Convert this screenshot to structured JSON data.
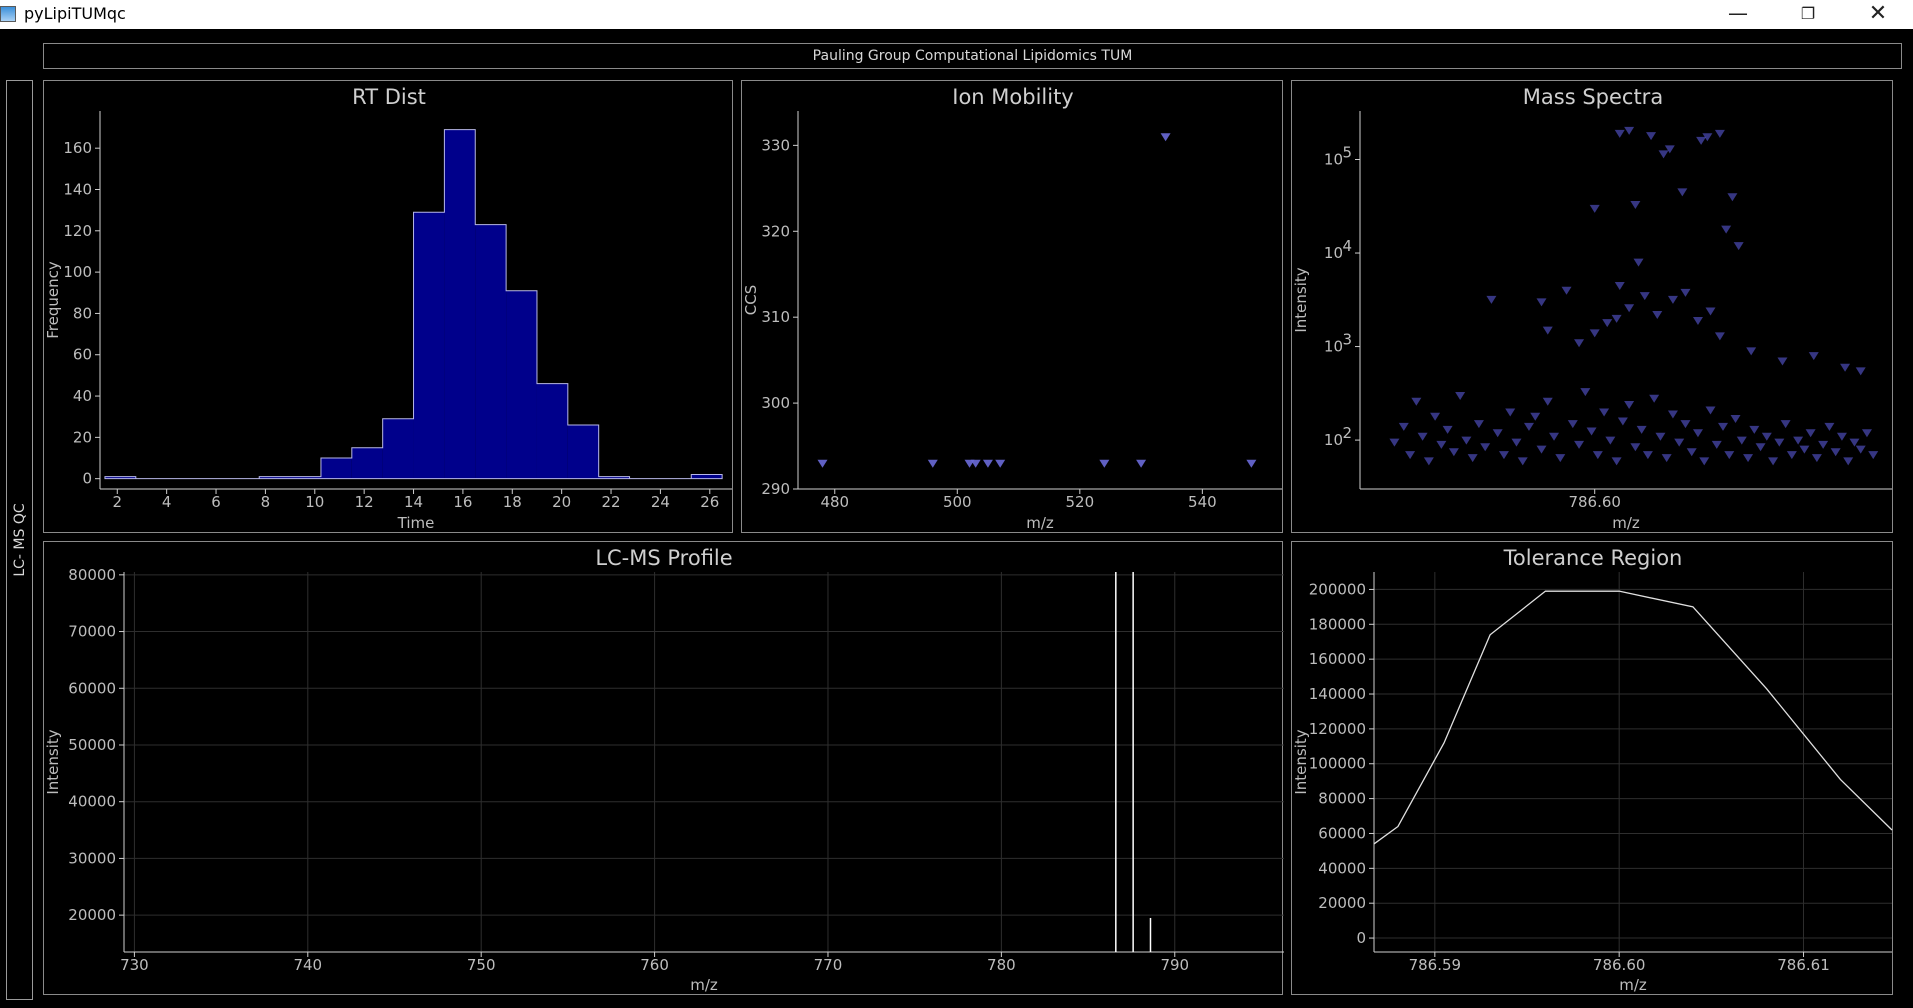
{
  "window": {
    "title": "pyLipiTUMqc",
    "controls": {
      "minimize": "—",
      "maximize": "❐",
      "close": "✕"
    }
  },
  "banner": "Pauling Group Computational Lipidomics TUM",
  "side_tab": "LC- MS QC",
  "colors": {
    "background": "#000000",
    "histogram_fill": "#00008b",
    "marker": "#5a5ad8",
    "line": "#ffffff",
    "grid": "#2e2e2e"
  },
  "chart_data": [
    {
      "id": "rt",
      "type": "bar",
      "title": "RT Dist",
      "xlabel": "Time",
      "ylabel": "Frequency",
      "xlim": [
        1.3,
        26.9
      ],
      "ylim": [
        -5,
        178
      ],
      "xticks": [
        2,
        4,
        6,
        8,
        10,
        12,
        14,
        16,
        18,
        20,
        22,
        24,
        26
      ],
      "yticks": [
        0,
        20,
        40,
        60,
        80,
        100,
        120,
        140,
        160
      ],
      "bin_edges": [
        1.5,
        2.75,
        4.0,
        5.25,
        6.5,
        7.75,
        9.0,
        10.25,
        11.5,
        12.75,
        14.0,
        15.25,
        16.5,
        17.75,
        19.0,
        20.25,
        21.5,
        22.75,
        24.0,
        25.25,
        26.5
      ],
      "values": [
        1,
        0,
        0,
        0,
        0,
        1,
        1,
        10,
        15,
        29,
        129,
        169,
        123,
        91,
        46,
        26,
        1,
        0,
        0,
        2
      ]
    },
    {
      "id": "ion",
      "type": "scatter",
      "title": "Ion Mobility",
      "xlabel": "m/z",
      "ylabel": "CCS",
      "xlim": [
        474,
        553
      ],
      "ylim": [
        290,
        334
      ],
      "xticks": [
        480,
        500,
        520,
        540
      ],
      "yticks": [
        290,
        300,
        310,
        320,
        330
      ],
      "points": [
        [
          478,
          293
        ],
        [
          496,
          293
        ],
        [
          502,
          293
        ],
        [
          503,
          293
        ],
        [
          505,
          293
        ],
        [
          507,
          293
        ],
        [
          524,
          293
        ],
        [
          530,
          293
        ],
        [
          548,
          293
        ],
        [
          534,
          331
        ]
      ]
    },
    {
      "id": "mass",
      "type": "scatter",
      "title": "Mass Spectra",
      "xlabel": "m/z",
      "ylabel": "Intensity",
      "yscale": "log",
      "xlim": [
        786.5925,
        786.6095
      ],
      "ylim": [
        30,
        330000
      ],
      "xticks": [
        786.6
      ],
      "xtick_labels": [
        "786.60"
      ],
      "yticks": [
        100,
        1000,
        10000,
        100000
      ],
      "ytick_base": "10",
      "ytick_exponents": [
        "2",
        "3",
        "4",
        "5"
      ],
      "points": [
        [
          786.5936,
          95
        ],
        [
          786.5939,
          140
        ],
        [
          786.5941,
          70
        ],
        [
          786.5943,
          260
        ],
        [
          786.5945,
          110
        ],
        [
          786.5947,
          60
        ],
        [
          786.5949,
          180
        ],
        [
          786.5951,
          90
        ],
        [
          786.5953,
          130
        ],
        [
          786.5955,
          75
        ],
        [
          786.5957,
          300
        ],
        [
          786.5959,
          100
        ],
        [
          786.5961,
          65
        ],
        [
          786.5963,
          150
        ],
        [
          786.5965,
          85
        ],
        [
          786.5967,
          3200
        ],
        [
          786.5969,
          120
        ],
        [
          786.5971,
          70
        ],
        [
          786.5973,
          200
        ],
        [
          786.5975,
          95
        ],
        [
          786.5977,
          60
        ],
        [
          786.5979,
          140
        ],
        [
          786.5981,
          180
        ],
        [
          786.5983,
          80
        ],
        [
          786.5985,
          260
        ],
        [
          786.5987,
          110
        ],
        [
          786.5989,
          65
        ],
        [
          786.5991,
          4000
        ],
        [
          786.5993,
          150
        ],
        [
          786.5995,
          90
        ],
        [
          786.5997,
          330
        ],
        [
          786.5999,
          125
        ],
        [
          786.6001,
          70
        ],
        [
          786.6003,
          200
        ],
        [
          786.6005,
          100
        ],
        [
          786.6007,
          60
        ],
        [
          786.6009,
          160
        ],
        [
          786.6011,
          240
        ],
        [
          786.6013,
          85
        ],
        [
          786.6015,
          130
        ],
        [
          786.6017,
          70
        ],
        [
          786.6019,
          280
        ],
        [
          786.6021,
          110
        ],
        [
          786.6023,
          65
        ],
        [
          786.6025,
          190
        ],
        [
          786.6027,
          95
        ],
        [
          786.6029,
          150
        ],
        [
          786.6031,
          75
        ],
        [
          786.6033,
          120
        ],
        [
          786.6035,
          60
        ],
        [
          786.6037,
          210
        ],
        [
          786.6039,
          90
        ],
        [
          786.6041,
          140
        ],
        [
          786.6043,
          70
        ],
        [
          786.6045,
          170
        ],
        [
          786.6047,
          100
        ],
        [
          786.6049,
          65
        ],
        [
          786.6051,
          130
        ],
        [
          786.6053,
          85
        ],
        [
          786.6055,
          110
        ],
        [
          786.6057,
          60
        ],
        [
          786.6059,
          95
        ],
        [
          786.6061,
          150
        ],
        [
          786.6063,
          70
        ],
        [
          786.6065,
          100
        ],
        [
          786.6067,
          80
        ],
        [
          786.6069,
          120
        ],
        [
          786.6071,
          65
        ],
        [
          786.6073,
          90
        ],
        [
          786.6075,
          140
        ],
        [
          786.6077,
          75
        ],
        [
          786.6079,
          110
        ],
        [
          786.6081,
          60
        ],
        [
          786.6083,
          95
        ],
        [
          786.6085,
          80
        ],
        [
          786.6087,
          120
        ],
        [
          786.6089,
          70
        ],
        [
          786.6008,
          190000
        ],
        [
          786.6011,
          205000
        ],
        [
          786.6018,
          180000
        ],
        [
          786.6022,
          115000
        ],
        [
          786.6024,
          130000
        ],
        [
          786.6034,
          160000
        ],
        [
          786.6036,
          175000
        ],
        [
          786.604,
          190000
        ],
        [
          786.6013,
          33000
        ],
        [
          786.6,
          30000
        ],
        [
          786.6028,
          45000
        ],
        [
          786.6044,
          40000
        ],
        [
          786.6042,
          18000
        ],
        [
          786.6046,
          12000
        ],
        [
          786.6014,
          8000
        ],
        [
          786.6008,
          4500
        ],
        [
          786.6016,
          3500
        ],
        [
          786.6025,
          3200
        ],
        [
          786.6029,
          3800
        ],
        [
          786.5983,
          3000
        ],
        [
          786.5985,
          1500
        ],
        [
          786.6007,
          2000
        ],
        [
          786.6011,
          2600
        ],
        [
          786.6004,
          1800
        ],
        [
          786.602,
          2200
        ],
        [
          786.6033,
          1900
        ],
        [
          786.6037,
          2400
        ],
        [
          786.6,
          1400
        ],
        [
          786.5995,
          1100
        ],
        [
          786.604,
          1300
        ],
        [
          786.605,
          900
        ],
        [
          786.606,
          700
        ],
        [
          786.607,
          800
        ],
        [
          786.608,
          600
        ],
        [
          786.6085,
          550
        ]
      ]
    },
    {
      "id": "lcms",
      "type": "line",
      "title": "LC-MS Profile",
      "xlabel": "m/z",
      "ylabel": "Intensity",
      "xlim": [
        729.4,
        796.3
      ],
      "ylim": [
        13500,
        80500
      ],
      "xticks": [
        730,
        740,
        750,
        760,
        770,
        780,
        790
      ],
      "yticks": [
        20000,
        30000,
        40000,
        50000,
        60000,
        70000,
        80000
      ],
      "segments": [
        [
          786.6,
          13500,
          80500
        ],
        [
          787.6,
          13500,
          80500
        ],
        [
          788.6,
          13500,
          19500
        ]
      ]
    },
    {
      "id": "tol",
      "type": "line",
      "title": "Tolerance Region",
      "xlabel": "m/z",
      "ylabel": "Intensity",
      "xlim": [
        786.5867,
        786.6148
      ],
      "ylim": [
        -8000,
        210000
      ],
      "xticks": [
        786.59,
        786.6,
        786.61
      ],
      "xtick_labels": [
        "786.59",
        "786.60",
        "786.61"
      ],
      "yticks": [
        0,
        20000,
        40000,
        60000,
        80000,
        100000,
        120000,
        140000,
        160000,
        180000,
        200000
      ],
      "x": [
        786.5867,
        786.588,
        786.5905,
        786.593,
        786.596,
        786.6,
        786.604,
        786.608,
        786.612,
        786.6148
      ],
      "y": [
        54000,
        64000,
        112000,
        174000,
        199000,
        199000,
        190000,
        143000,
        91000,
        62000
      ]
    }
  ]
}
